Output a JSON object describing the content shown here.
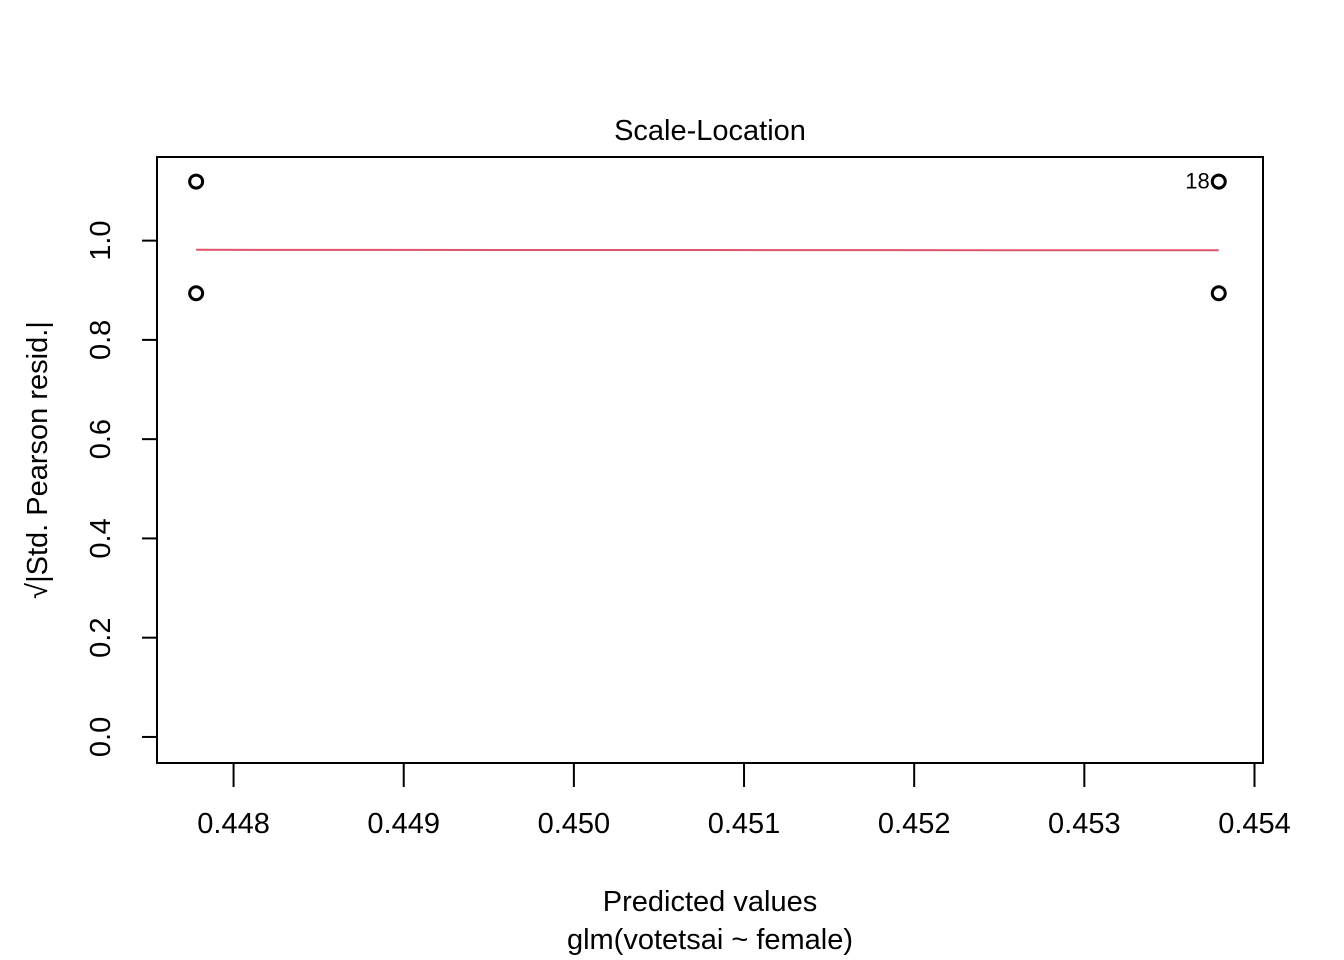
{
  "chart_data": {
    "type": "scatter",
    "title": "Scale-Location",
    "xlabel": "Predicted values",
    "subtitle": "glm(votetsai ~ female)",
    "ylabel": "√|Std. Pearson resid.|",
    "xlim": [
      0.44755,
      0.45405
    ],
    "ylim": [
      -0.0525,
      1.1685
    ],
    "x_ticks": [
      0.448,
      0.449,
      0.45,
      0.451,
      0.452,
      0.453,
      0.454
    ],
    "x_tick_labels": [
      "0.448",
      "0.449",
      "0.450",
      "0.451",
      "0.452",
      "0.453",
      "0.454"
    ],
    "y_ticks": [
      0.0,
      0.2,
      0.4,
      0.6,
      0.8,
      1.0
    ],
    "y_tick_labels": [
      "0.0",
      "0.2",
      "0.4",
      "0.6",
      "0.8",
      "1.0"
    ],
    "points": [
      {
        "x": 0.44778,
        "y": 1.119
      },
      {
        "x": 0.44778,
        "y": 0.894
      },
      {
        "x": 0.45379,
        "y": 1.119
      },
      {
        "x": 0.45379,
        "y": 0.894
      }
    ],
    "smooth_line": {
      "color": "#DF536B",
      "x": [
        0.44778,
        0.4508,
        0.45379
      ],
      "y": [
        0.9815,
        0.981,
        0.9805
      ]
    },
    "point_labels": [
      {
        "text": "18",
        "x": 0.45379,
        "y": 1.119,
        "side": "left"
      }
    ],
    "grid": false,
    "legend": "none"
  }
}
